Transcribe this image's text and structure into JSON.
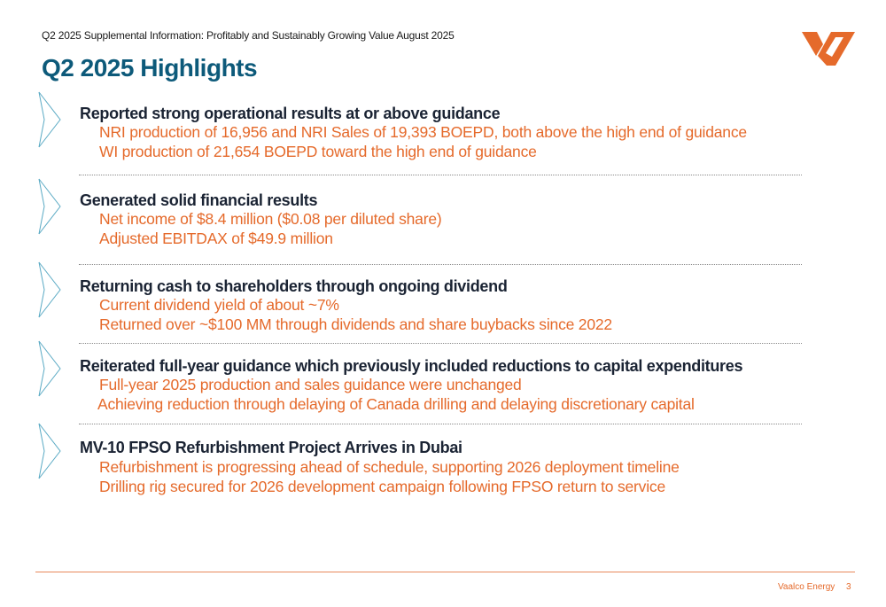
{
  "header": {
    "text": "Q2 2025 Supplemental Information: Profitably and Sustainably Growing Value August 2025"
  },
  "title": "Q2 2025 Highlights",
  "logo": {
    "icon": "vaalco-logo-icon",
    "color": "#e56a2b"
  },
  "colors": {
    "title": "#0d5a7a",
    "heading": "#1a2333",
    "bullet": "#e56a2b",
    "chevron": "#5aaac4"
  },
  "sections": [
    {
      "heading": "Reported strong operational results at or above guidance",
      "bullets": [
        "NRI production of 16,956 and NRI Sales of 19,393 BOEPD, both above the high end of guidance",
        "WI production of 21,654 BOEPD toward the high end of guidance"
      ]
    },
    {
      "heading": "Generated solid financial results",
      "bullets": [
        "Net income of $8.4 million ($0.08 per diluted share)",
        "Adjusted EBITDAX of $49.9 million"
      ]
    },
    {
      "heading": "Returning cash to shareholders through ongoing dividend",
      "bullets": [
        "Current dividend yield of about ~7%",
        "Returned over ~$100 MM through dividends and share buybacks since 2022"
      ]
    },
    {
      "heading": "Reiterated full-year guidance which previously included reductions to capital expenditures",
      "bullets": [
        "Full-year 2025 production and sales guidance were unchanged",
        "Achieving reduction through delaying of Canada drilling and delaying discretionary capital"
      ]
    },
    {
      "heading": "MV-10 FPSO Refurbishment Project Arrives in Dubai",
      "bullets": [
        "Refurbishment is progressing ahead of schedule, supporting 2026 deployment timeline",
        "Drilling rig secured for 2026 development campaign following FPSO return to service"
      ]
    }
  ],
  "footer": {
    "company": "Vaalco Energy",
    "page_number": "3"
  }
}
